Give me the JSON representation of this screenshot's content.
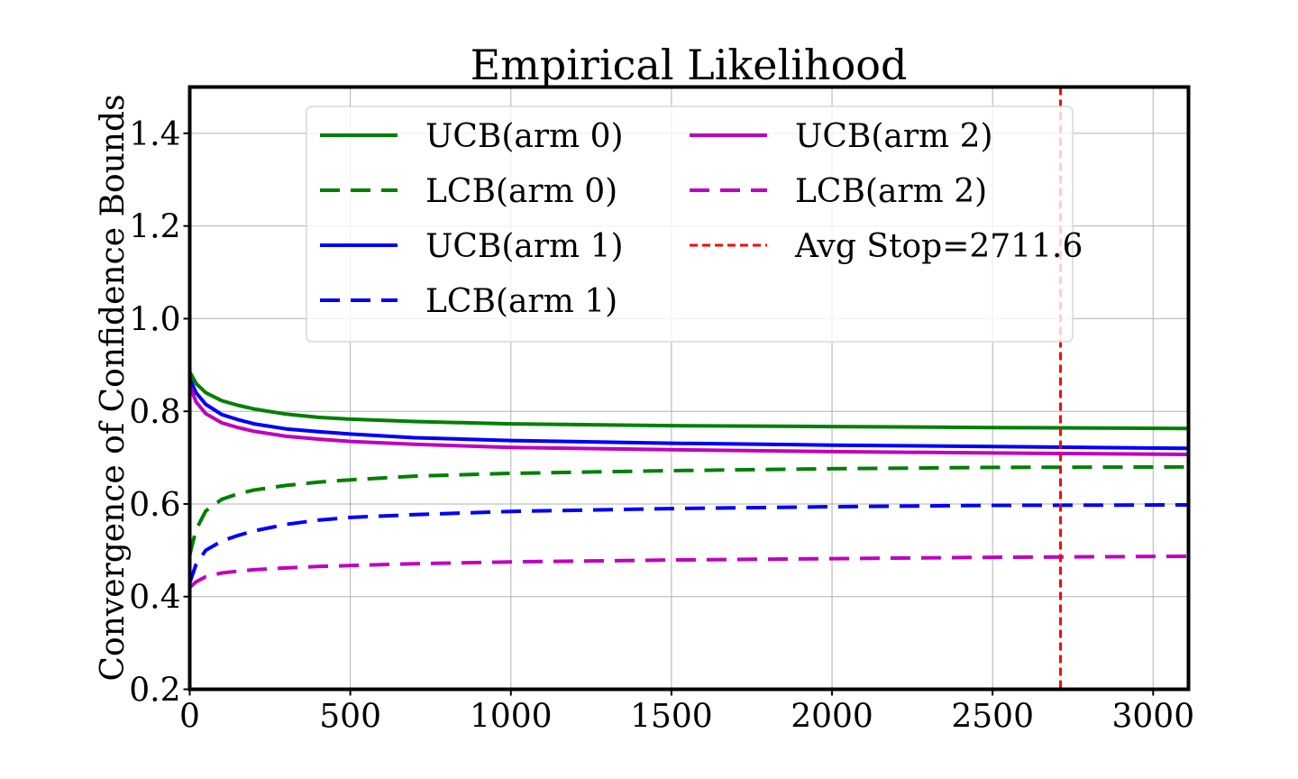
{
  "chart_data": {
    "type": "line",
    "title": "Empirical Likelihood",
    "xlabel": "",
    "ylabel": "Convergence of Confidence Bounds",
    "xlim": [
      0,
      3110
    ],
    "ylim": [
      0.2,
      1.5
    ],
    "xticks": [
      0,
      500,
      1000,
      1500,
      2000,
      2500,
      3000
    ],
    "yticks": [
      0.2,
      0.4,
      0.6,
      0.8,
      1.0,
      1.2,
      1.4
    ],
    "xtick_labels": [
      "0",
      "500",
      "1000",
      "1500",
      "2000",
      "2500",
      "3000"
    ],
    "ytick_labels": [
      "0.2",
      "0.4",
      "0.6",
      "0.8",
      "1.0",
      "1.2",
      "1.4"
    ],
    "grid": true,
    "legend_position": "top-center",
    "x": [
      0,
      20,
      50,
      100,
      150,
      200,
      300,
      400,
      500,
      700,
      1000,
      1500,
      2000,
      2500,
      3110
    ],
    "series": [
      {
        "name": "UCB(arm 0)",
        "color": "#008000",
        "style": "solid",
        "values": [
          0.885,
          0.86,
          0.84,
          0.823,
          0.813,
          0.805,
          0.794,
          0.787,
          0.783,
          0.778,
          0.773,
          0.769,
          0.767,
          0.765,
          0.763
        ]
      },
      {
        "name": "LCB(arm 0)",
        "color": "#008000",
        "style": "dashed",
        "values": [
          0.49,
          0.545,
          0.585,
          0.61,
          0.622,
          0.63,
          0.64,
          0.647,
          0.652,
          0.66,
          0.666,
          0.672,
          0.676,
          0.679,
          0.68
        ]
      },
      {
        "name": "UCB(arm 1)",
        "color": "#0000ff",
        "style": "solid",
        "values": [
          0.87,
          0.84,
          0.815,
          0.793,
          0.782,
          0.773,
          0.762,
          0.756,
          0.751,
          0.743,
          0.737,
          0.731,
          0.727,
          0.724,
          0.72
        ]
      },
      {
        "name": "LCB(arm 1)",
        "color": "#0000ff",
        "style": "dashed",
        "values": [
          0.43,
          0.47,
          0.5,
          0.52,
          0.532,
          0.542,
          0.556,
          0.565,
          0.571,
          0.577,
          0.584,
          0.59,
          0.594,
          0.597,
          0.598
        ]
      },
      {
        "name": "UCB(arm 2)",
        "color": "#c000c0",
        "style": "solid",
        "values": [
          0.855,
          0.82,
          0.795,
          0.775,
          0.765,
          0.757,
          0.746,
          0.74,
          0.735,
          0.729,
          0.722,
          0.717,
          0.713,
          0.71,
          0.707
        ]
      },
      {
        "name": "LCB(arm 2)",
        "color": "#c000c0",
        "style": "dashed",
        "values": [
          0.42,
          0.432,
          0.443,
          0.451,
          0.455,
          0.458,
          0.462,
          0.465,
          0.467,
          0.471,
          0.475,
          0.479,
          0.482,
          0.485,
          0.487
        ]
      }
    ],
    "vline": {
      "name": "Avg Stop=2711.6",
      "x": 2711.6,
      "color": "#ff0000",
      "style": "dotted-dashed"
    },
    "legend_entries": [
      "UCB(arm 0)",
      "LCB(arm 0)",
      "UCB(arm 1)",
      "LCB(arm 1)",
      "UCB(arm 2)",
      "LCB(arm 2)",
      "Avg Stop=2711.6"
    ]
  }
}
